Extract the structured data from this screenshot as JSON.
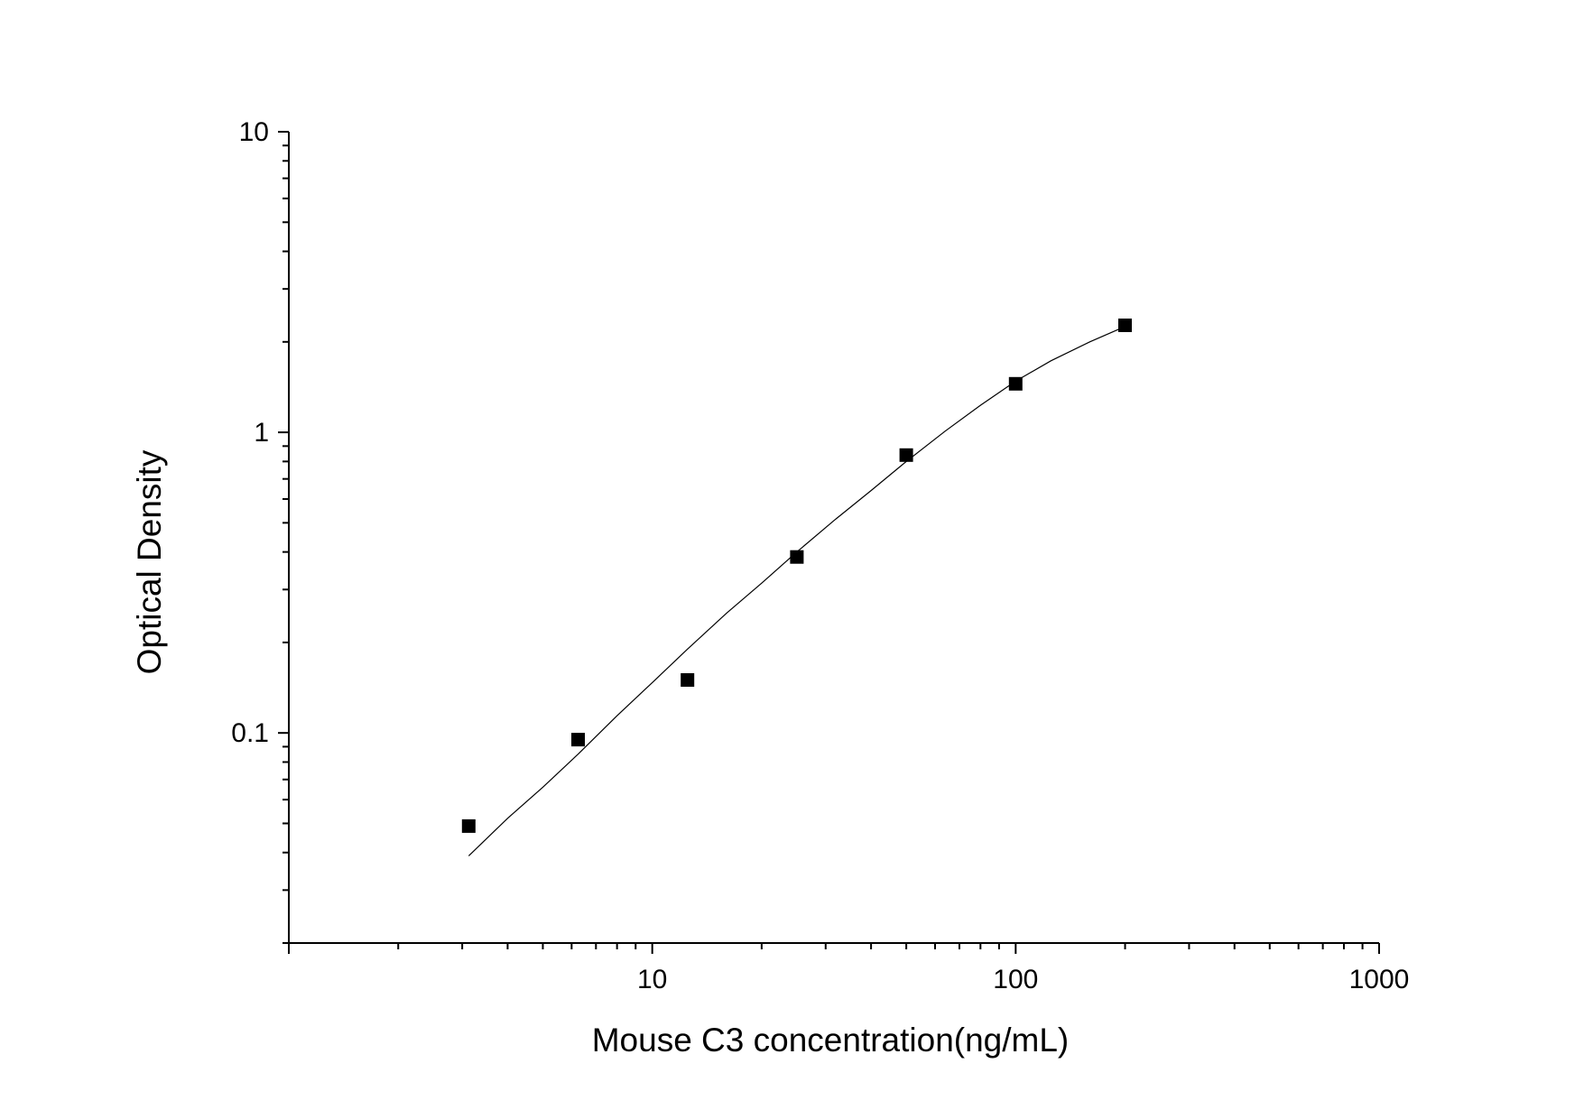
{
  "chart_data": {
    "type": "scatter",
    "title": "",
    "xlabel": "Mouse C3 concentration(ng/mL)",
    "ylabel": "Optical Density",
    "xscale": "log",
    "yscale": "log",
    "xlim": [
      1,
      1000
    ],
    "ylim": [
      0.02,
      10
    ],
    "x_tick_labels": [
      "10",
      "100",
      "1000"
    ],
    "y_tick_labels": [
      "0.1",
      "1",
      "10"
    ],
    "grid": false,
    "legend": "none",
    "series": [
      {
        "marker": "square",
        "x": [
          3.125,
          6.25,
          12.5,
          25,
          50,
          100,
          200
        ],
        "y": [
          0.049,
          0.095,
          0.15,
          0.385,
          0.84,
          1.45,
          2.27
        ]
      }
    ],
    "fit_curve": {
      "x": [
        3.125,
        4,
        5,
        6.25,
        8,
        10,
        12.5,
        16,
        20,
        25,
        32,
        40,
        50,
        64,
        80,
        100,
        125,
        160,
        200
      ],
      "y": [
        0.039,
        0.052,
        0.066,
        0.085,
        0.114,
        0.147,
        0.19,
        0.25,
        0.315,
        0.4,
        0.515,
        0.64,
        0.8,
        1.01,
        1.23,
        1.48,
        1.73,
        2.0,
        2.25
      ]
    },
    "colors": {
      "axis": "#000000",
      "marker": "#000000",
      "curve": "#000000"
    }
  }
}
